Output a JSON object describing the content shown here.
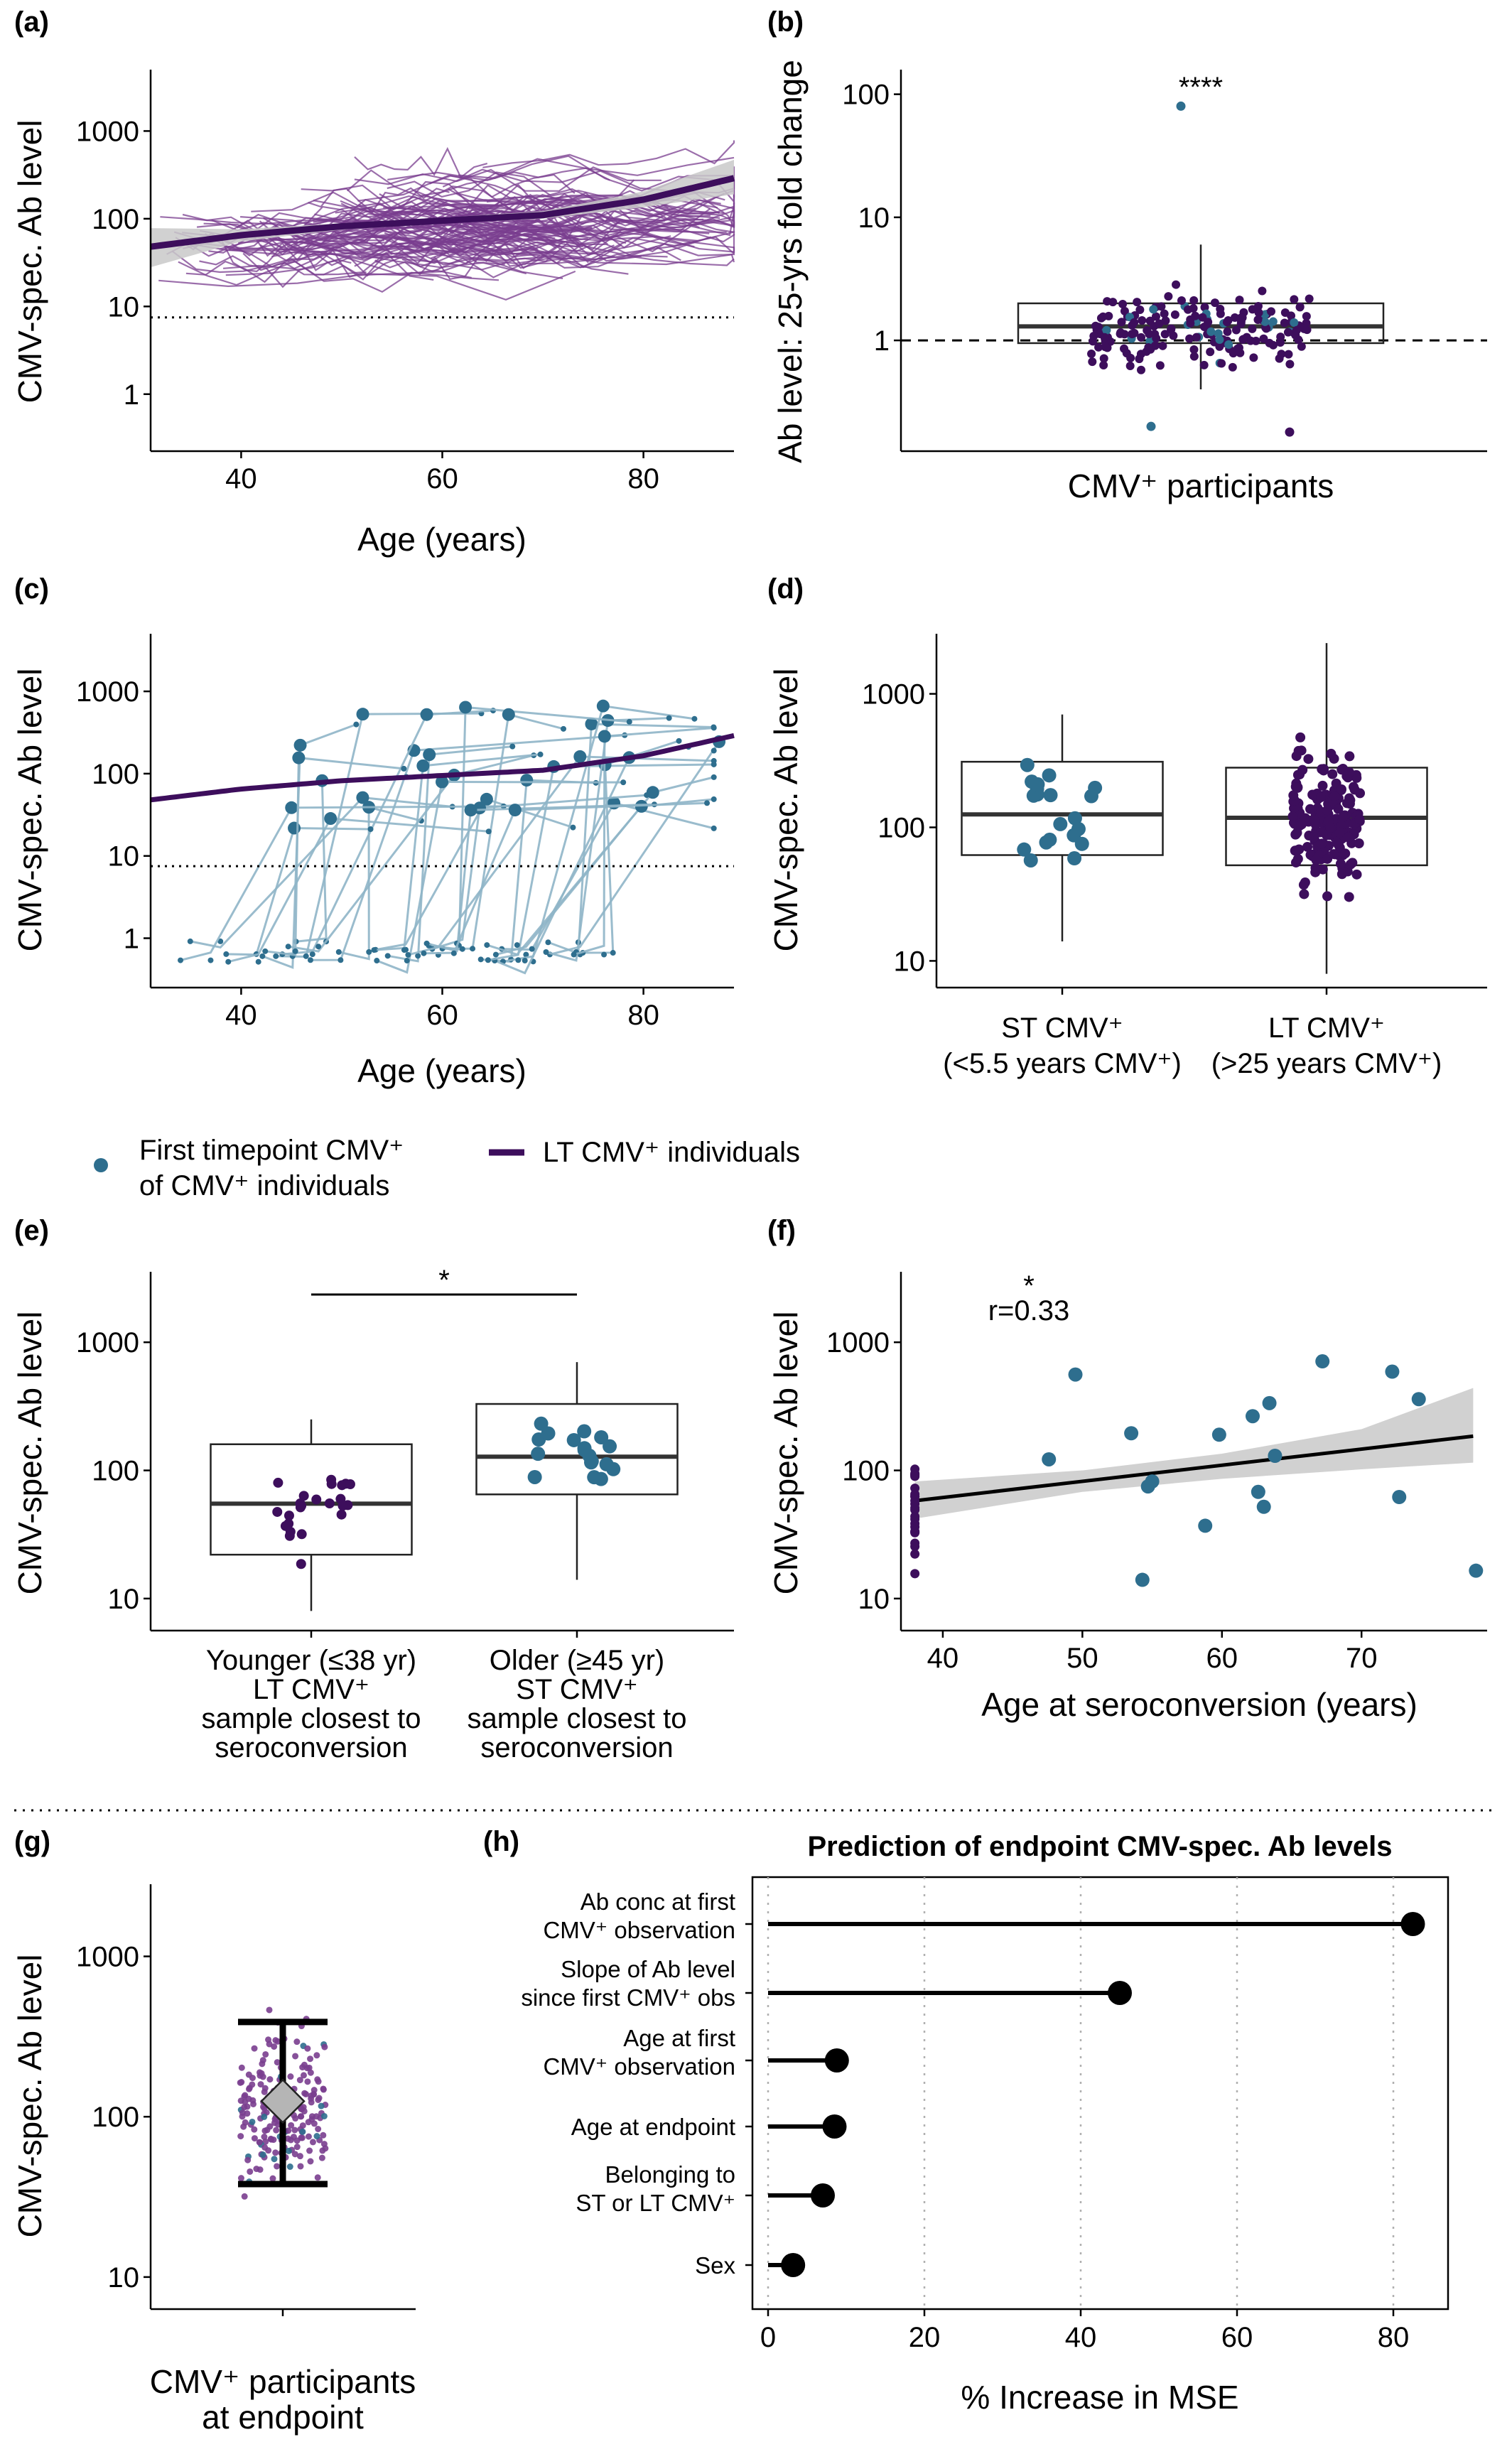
{
  "colors": {
    "lt_purple": "#3d0e5c",
    "lt_purple_light": "#7a3e8f",
    "st_blue": "#2e6e8e",
    "st_line": "#8fb5c8",
    "ci_gray": "#c9c9c9",
    "grid_gray": "#b0b0b0"
  },
  "legend": {
    "st_entry": [
      "First timepoint CMV⁺",
      "of CMV⁺ individuals"
    ],
    "lt_entry": "LT CMV⁺ individuals"
  },
  "chart_data": [
    {
      "panel": "(a)",
      "type": "line",
      "xlabel": "Age (years)",
      "ylabel": "CMV-spec. Ab level",
      "xlim": [
        31,
        89
      ],
      "ylim_log10": [
        -0.65,
        3.7
      ],
      "x_ticks": [
        40,
        60,
        80
      ],
      "y_ticks": [
        1,
        10,
        100,
        1000
      ],
      "y_tick_labels": [
        "1",
        "10",
        "100",
        "1000"
      ],
      "threshold": 7.5,
      "series": [
        {
          "values": [
            [
              31,
              48
            ],
            [
              40,
              65
            ],
            [
              50,
              82
            ],
            [
              60,
              95
            ],
            [
              70,
              110
            ],
            [
              80,
              165
            ],
            [
              89,
              290
            ]
          ]
        }
      ],
      "ci_lower": [
        [
          31,
          28
        ],
        [
          40,
          55
        ],
        [
          50,
          75
        ],
        [
          60,
          88
        ],
        [
          70,
          100
        ],
        [
          80,
          135
        ],
        [
          89,
          190
        ]
      ],
      "ci_upper": [
        [
          31,
          78
        ],
        [
          40,
          76
        ],
        [
          50,
          89
        ],
        [
          60,
          103
        ],
        [
          70,
          122
        ],
        [
          80,
          205
        ],
        [
          89,
          470
        ]
      ],
      "individual_trajectories": "many individual longitudinal trajectories, roughly 10–2000"
    },
    {
      "panel": "(b)",
      "type": "scatter",
      "xlabel": "CMV⁺ participants",
      "ylabel": "Ab level: 25-yrs fold change",
      "ylim_log10": [
        -0.9,
        2.2
      ],
      "y_ticks": [
        1,
        10,
        100
      ],
      "y_tick_labels": [
        "1",
        "10",
        "100"
      ],
      "reference": 1,
      "box": {
        "q1": 0.95,
        "median": 1.3,
        "q3": 2.0,
        "whisker_low": 0.4,
        "whisker_high": 6
      },
      "annotation": "****",
      "points_range": [
        0.2,
        80
      ]
    },
    {
      "panel": "(c)",
      "type": "line",
      "xlabel": "Age (years)",
      "ylabel": "CMV-spec. Ab level",
      "xlim": [
        31,
        89
      ],
      "ylim_log10": [
        -0.6,
        3.7
      ],
      "x_ticks": [
        40,
        60,
        80
      ],
      "y_ticks": [
        1,
        10,
        100,
        1000
      ],
      "y_tick_labels": [
        "1",
        "10",
        "100",
        "1000"
      ],
      "threshold": 7.5,
      "lt_curve": [
        [
          31,
          48
        ],
        [
          40,
          65
        ],
        [
          50,
          82
        ],
        [
          60,
          95
        ],
        [
          70,
          110
        ],
        [
          80,
          165
        ],
        [
          89,
          290
        ]
      ]
    },
    {
      "panel": "(d)",
      "type": "scatter",
      "ylabel": "CMV-spec. Ab level",
      "categories": [
        [
          "ST CMV⁺",
          "(<5.5 years CMV⁺)"
        ],
        [
          "LT CMV⁺",
          "(>25 years CMV⁺)"
        ]
      ],
      "ylim_log10": [
        0.8,
        3.45
      ],
      "y_ticks": [
        10,
        100,
        1000
      ],
      "y_tick_labels": [
        "10",
        "100",
        "1000"
      ],
      "boxes": [
        {
          "q1": 62,
          "median": 125,
          "q3": 310,
          "whisker_low": 14,
          "whisker_high": 700
        },
        {
          "q1": 52,
          "median": 118,
          "q3": 280,
          "whisker_low": 8,
          "whisker_high": 2400
        }
      ]
    },
    {
      "panel": "(e)",
      "type": "scatter",
      "ylabel": "CMV-spec. Ab level",
      "categories": [
        [
          "Younger (≤38  yr)",
          "LT CMV⁺",
          "sample closest to",
          "seroconversion"
        ],
        [
          "Older (≥45  yr)",
          "ST CMV⁺",
          "sample closest to",
          "seroconversion"
        ]
      ],
      "ylim_log10": [
        0.75,
        3.55
      ],
      "y_ticks": [
        10,
        100,
        1000
      ],
      "y_tick_labels": [
        "10",
        "100",
        "1000"
      ],
      "boxes": [
        {
          "q1": 22,
          "median": 55,
          "q3": 160,
          "whisker_low": 8,
          "whisker_high": 250
        },
        {
          "q1": 65,
          "median": 128,
          "q3": 330,
          "whisker_low": 14,
          "whisker_high": 700
        }
      ],
      "annotation": "*"
    },
    {
      "panel": "(f)",
      "type": "scatter",
      "xlabel": "Age at seroconversion (years)",
      "ylabel": "CMV-spec. Ab level",
      "xlim": [
        37,
        79
      ],
      "x_ticks": [
        40,
        50,
        60,
        70
      ],
      "ylim_log10": [
        0.75,
        3.55
      ],
      "y_ticks": [
        10,
        100,
        1000
      ],
      "y_tick_labels": [
        "10",
        "100",
        "1000"
      ],
      "annotation_star": "*",
      "annotation_r": "r=0.33",
      "fit": [
        [
          38,
          58
        ],
        [
          78,
          185
        ]
      ],
      "ci_lower": [
        [
          38,
          42
        ],
        [
          50,
          68
        ],
        [
          60,
          86
        ],
        [
          70,
          102
        ],
        [
          78,
          115
        ]
      ],
      "ci_upper": [
        [
          38,
          82
        ],
        [
          50,
          100
        ],
        [
          60,
          135
        ],
        [
          70,
          210
        ],
        [
          78,
          440
        ]
      ],
      "points": [
        [
          47.6,
          122
        ],
        [
          49.5,
          560
        ],
        [
          53.5,
          195
        ],
        [
          54.3,
          14
        ],
        [
          54.7,
          75
        ],
        [
          55,
          82
        ],
        [
          58.8,
          37
        ],
        [
          59.8,
          190
        ],
        [
          62.2,
          265
        ],
        [
          62.6,
          68
        ],
        [
          63,
          52
        ],
        [
          63.4,
          335
        ],
        [
          63.8,
          130
        ],
        [
          67.2,
          710
        ],
        [
          72.2,
          590
        ],
        [
          72.7,
          62
        ],
        [
          74.1,
          360
        ],
        [
          78.2,
          16.5
        ]
      ]
    },
    {
      "panel": "(g)",
      "type": "scatter",
      "xlabel": [
        "CMV⁺ participants",
        "at endpoint"
      ],
      "ylabel": "CMV-spec. Ab level",
      "ylim_log10": [
        0.8,
        3.45
      ],
      "y_ticks": [
        10,
        100,
        1000
      ],
      "y_tick_labels": [
        "10",
        "100",
        "1000"
      ],
      "summary": {
        "center": 125,
        "low": 38,
        "high": 390
      }
    },
    {
      "panel": "(h)",
      "type": "bar",
      "title": "Prediction of endpoint CMV-spec. Ab levels",
      "xlabel": "% Increase in MSE",
      "xlim": [
        -2,
        87
      ],
      "x_ticks": [
        0,
        20,
        40,
        60,
        80
      ],
      "categories": [
        [
          "Ab conc at first",
          "CMV⁺ observation"
        ],
        [
          "Slope of Ab level",
          "since first CMV⁺ obs"
        ],
        [
          "Age at first",
          "CMV⁺ observation"
        ],
        [
          "Age at endpoint"
        ],
        [
          "Belonging to",
          "ST or LT CMV⁺"
        ],
        [
          "Sex"
        ]
      ],
      "values": [
        82.5,
        45,
        8.8,
        8.5,
        7.0,
        3.2
      ]
    }
  ]
}
